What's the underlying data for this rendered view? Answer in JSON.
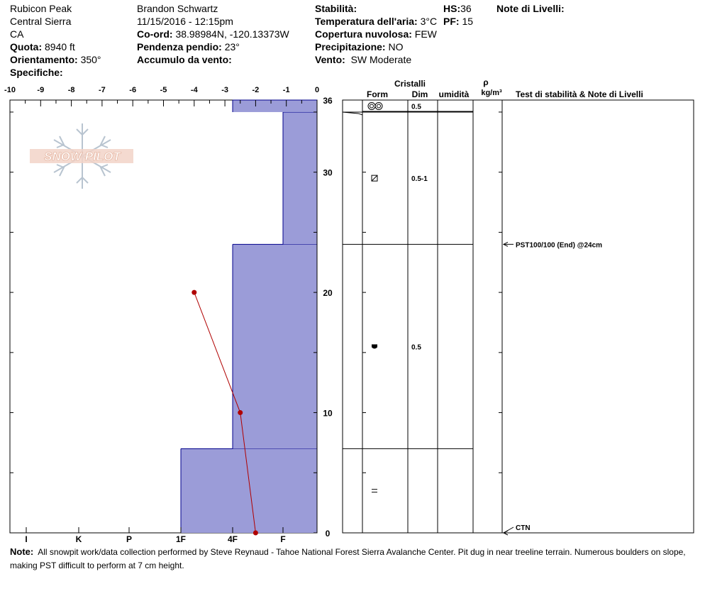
{
  "header": {
    "location": "Rubicon Peak",
    "range": "Central Sierra",
    "state": "CA",
    "elevation_label": "Quota:",
    "elevation_value": "8940 ft",
    "aspect_label": "Orientamento:",
    "aspect_value": "350°",
    "specifics_label": "Specifiche:",
    "observer": "Brandon Schwartz",
    "datetime": "11/15/2016 - 12:15pm",
    "coord_label": "Co-ord:",
    "coord_value": "38.98984N, -120.13373W",
    "slope_label": "Pendenza pendio:",
    "slope_value": "23°",
    "wind_loading_label": "Accumulo da vento:",
    "stability_label": "Stabilità:",
    "air_temp_label": "Temperatura dell'aria:",
    "air_temp_value": "3°C",
    "cloud_label": "Copertura nuvolosa:",
    "cloud_value": "FEW",
    "precip_label": "Precipitazione:",
    "precip_value": "NO",
    "wind_label": "Vento:",
    "wind_value": "SW Moderate",
    "hs_label": "HS:",
    "hs_value": "36",
    "pf_label": "PF:",
    "pf_value": "15",
    "layer_notes_label": "Note di Livelli:"
  },
  "logo_text": "SNOW PILOT",
  "colors": {
    "layer_fill": "#9b9cd8",
    "layer_edge": "#00008b",
    "temp_line": "#b00000"
  },
  "right_headers": {
    "cristalli": "Cristalli",
    "form": "Form",
    "dim": "Dim",
    "umidita": "umidità",
    "rho": "ρ",
    "density_unit": "kg/m³",
    "tests_notes": "Test di stabilità & Note di Livelli"
  },
  "chart_data": {
    "type": "snow_profile",
    "temperature_axis": {
      "ticks": [
        "-10",
        "-9",
        "-8",
        "-7",
        "-6",
        "-5",
        "-4",
        "-3",
        "-2",
        "-1",
        "0"
      ],
      "range": [
        -10,
        0
      ]
    },
    "hardness_axis": {
      "ticks": [
        "I",
        "K",
        "P",
        "1F",
        "4F",
        "F"
      ]
    },
    "height_axis": {
      "range": [
        0,
        36
      ],
      "ticks": [
        "0",
        "10",
        "20",
        "30",
        "36"
      ]
    },
    "hardness_layers": [
      {
        "bottom": 0,
        "top": 7,
        "hardness": "1F"
      },
      {
        "bottom": 7,
        "top": 24,
        "hardness": "4F"
      },
      {
        "bottom": 24,
        "top": 35,
        "hardness": "4F-F"
      },
      {
        "bottom": 35,
        "top": 36,
        "hardness": "4F"
      }
    ],
    "temperature_profile": [
      {
        "height": 0,
        "temp": -2.0
      },
      {
        "height": 10,
        "temp": -2.5
      },
      {
        "height": 20,
        "temp": -4.0
      }
    ],
    "layer_table": [
      {
        "bottom": 35,
        "top": 36,
        "form_icon": "melt-forms-icon",
        "dim": "0.5"
      },
      {
        "bottom": 24,
        "top": 35,
        "form_icon": "faceted-icon",
        "dim": "0.5-1"
      },
      {
        "bottom": 7,
        "top": 24,
        "form_icon": "depth-hoar-icon",
        "dim": "0.5"
      },
      {
        "bottom": 0,
        "top": 7,
        "form_icon": "crust-icon",
        "dim": ""
      }
    ],
    "tests": [
      {
        "height": 24,
        "label": "PST100/100 (End) @24cm"
      },
      {
        "height": 0,
        "label": "CTN"
      }
    ]
  },
  "note": {
    "label": "Note:",
    "text": "All snowpit work/data collection performed by Steve Reynaud - Tahoe National Forest Sierra Avalanche Center. Pit dug in near treeline terrain. Numerous boulders on slope, making PST difficult to perform at 7 cm height."
  }
}
